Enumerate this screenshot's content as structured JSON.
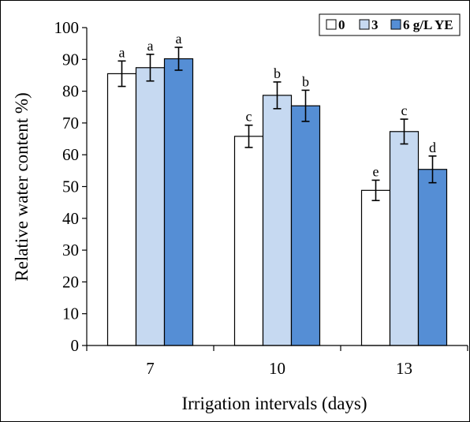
{
  "chart_data": {
    "type": "bar",
    "categories": [
      "7",
      "10",
      "13"
    ],
    "xlabel": "Irrigation intervals (days)",
    "ylabel": "Relative water content %)",
    "ylim": [
      0,
      100
    ],
    "yticks": [
      0,
      10,
      20,
      30,
      40,
      50,
      60,
      70,
      80,
      90,
      100
    ],
    "grid": false,
    "legend_position": "top-right",
    "series": [
      {
        "name": "0",
        "color": "#ffffff",
        "values": [
          85.5,
          65.8,
          48.8
        ],
        "errors": [
          4.0,
          3.5,
          3.2
        ],
        "letters": [
          "a",
          "c",
          "e"
        ]
      },
      {
        "name": "3",
        "color": "#c6d9f1",
        "values": [
          87.4,
          78.7,
          67.3
        ],
        "errors": [
          4.2,
          4.2,
          3.9
        ],
        "letters": [
          "a",
          "b",
          "c"
        ]
      },
      {
        "name": "6 g/L YE",
        "color": "#558ed5",
        "values": [
          90.2,
          75.4,
          55.4
        ],
        "errors": [
          3.6,
          4.9,
          4.2
        ],
        "letters": [
          "a",
          "b",
          "d"
        ]
      }
    ]
  }
}
